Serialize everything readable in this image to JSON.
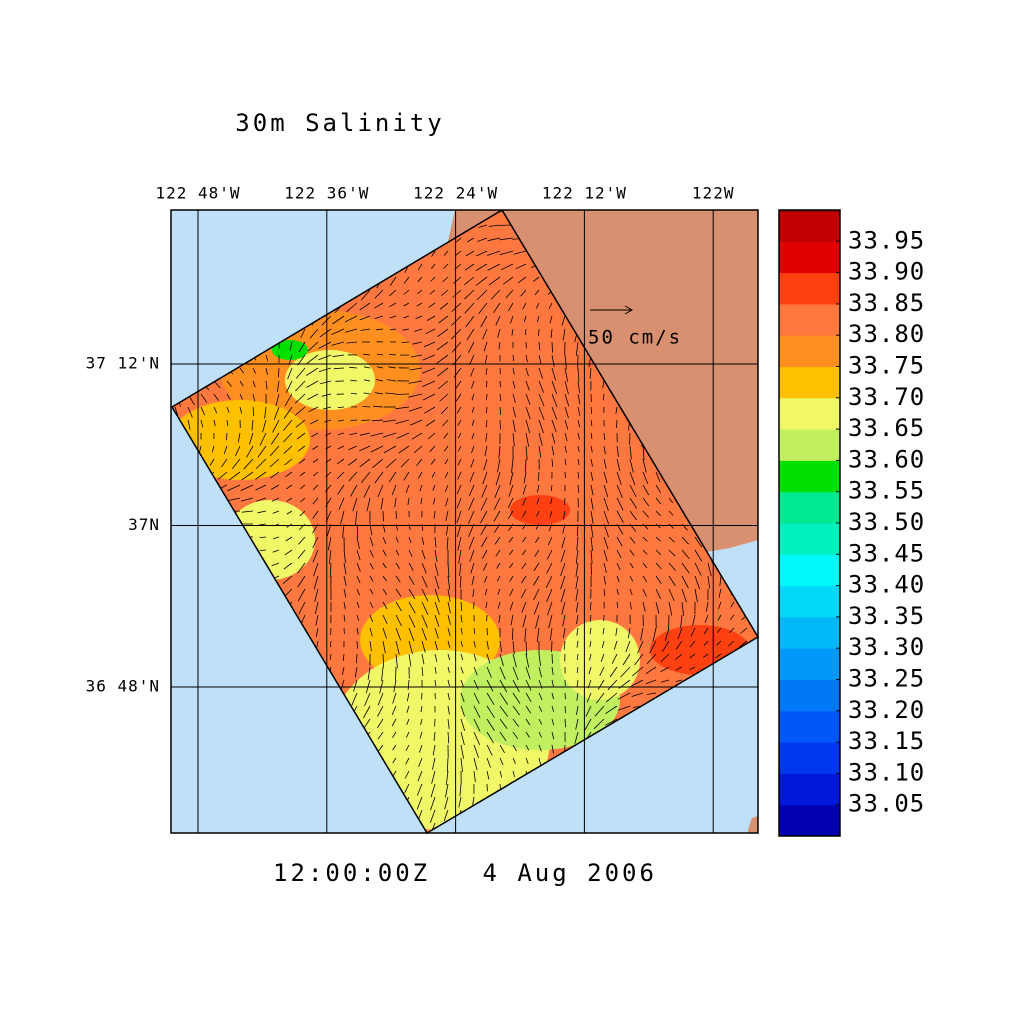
{
  "title": "30m Salinity",
  "map": {
    "lon_labels": [
      "122 48'W",
      "122 36'W",
      "122 24'W",
      "122 12'W",
      "122W"
    ],
    "lat_labels": [
      "37 12'N",
      "37N",
      "36 48'N"
    ]
  },
  "vector_scale_label": "50 cm/s",
  "time_label": "12:00:00Z   4 Aug 2006",
  "colorbar": {
    "lim": [
      33.0,
      34.0
    ],
    "ticks": [
      33.05,
      33.1,
      33.15,
      33.2,
      33.25,
      33.3,
      33.35,
      33.4,
      33.45,
      33.5,
      33.55,
      33.6,
      33.65,
      33.7,
      33.75,
      33.8,
      33.85,
      33.9,
      33.95
    ],
    "tick_labels": [
      "33.05",
      "33.10",
      "33.15",
      "33.20",
      "33.25",
      "33.30",
      "33.35",
      "33.40",
      "33.45",
      "33.50",
      "33.55",
      "33.60",
      "33.65",
      "33.70",
      "33.75",
      "33.80",
      "33.85",
      "33.90",
      "33.95"
    ],
    "colors": [
      "#0000b0",
      "#0018d8",
      "#0038f0",
      "#0058f8",
      "#0078f8",
      "#0098f8",
      "#00b8f8",
      "#00d8f8",
      "#00f8f8",
      "#00f0c0",
      "#00e890",
      "#00e000",
      "#c0f060",
      "#f0f868",
      "#ffc000",
      "#ff9020",
      "#ff7840",
      "#ff4010",
      "#e00000",
      "#c00000",
      "#900000"
    ]
  }
}
